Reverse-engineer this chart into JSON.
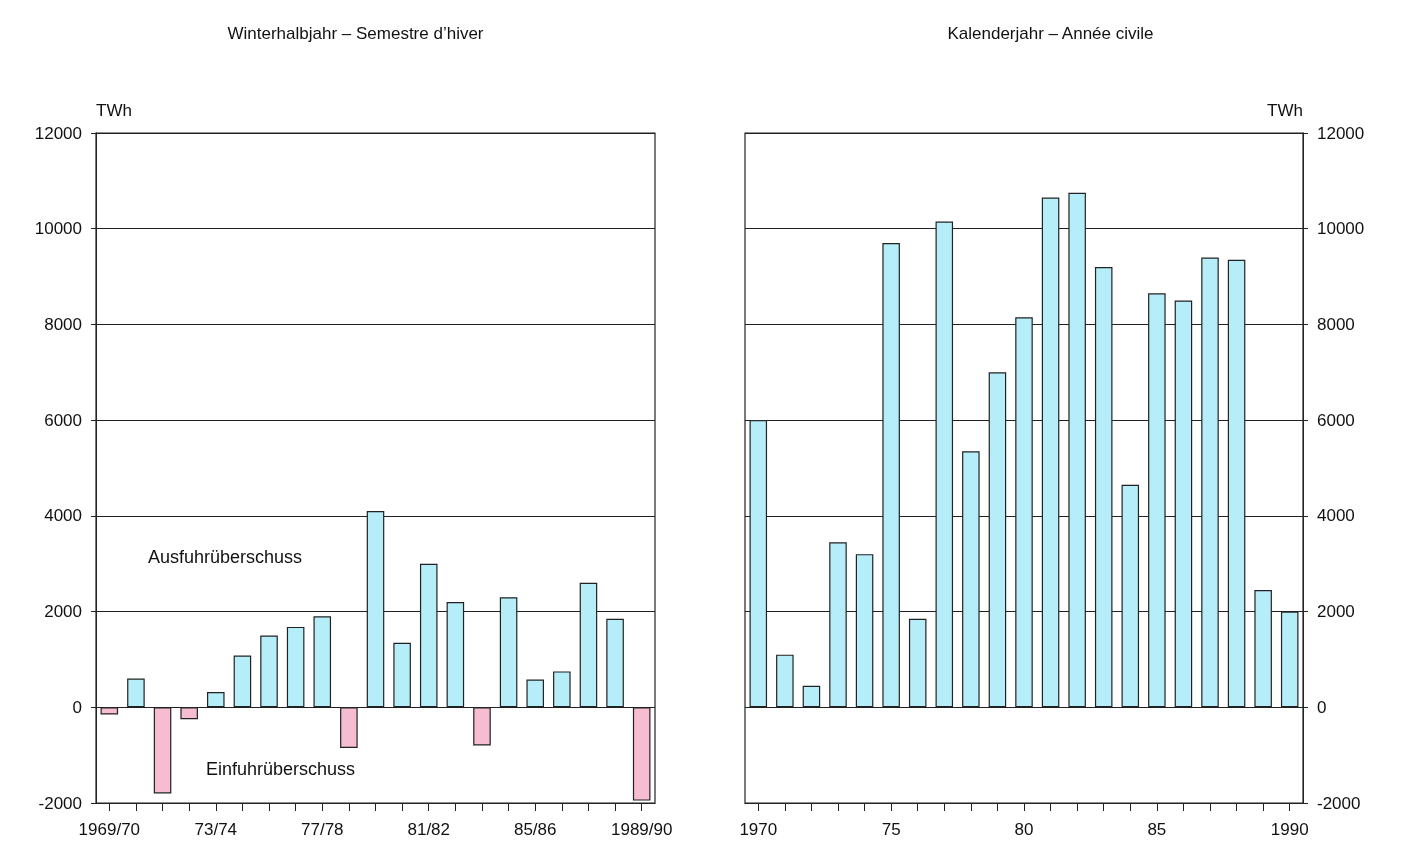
{
  "chart_data": [
    {
      "type": "bar",
      "title": "Winterhalbjahr – Semestre d’hiver",
      "ylabel": "TWh",
      "categories": [
        "1969/70",
        null,
        null,
        null,
        "73/74",
        null,
        null,
        null,
        "77/78",
        null,
        null,
        null,
        "81/82",
        null,
        null,
        null,
        "85/86",
        null,
        null,
        null,
        "1989/90"
      ],
      "values": [
        -150,
        600,
        -1800,
        -250,
        320,
        1080,
        1500,
        1680,
        1900,
        -850,
        4100,
        1350,
        3000,
        2200,
        -800,
        2300,
        580,
        750,
        2600,
        1850,
        -1950
      ],
      "colors": [
        "#f5bcd2",
        "#b5eef9",
        "#f5bcd2",
        "#f5bcd2",
        "#b5eef9",
        "#b5eef9",
        "#b5eef9",
        "#b5eef9",
        "#b5eef9",
        "#f5bcd2",
        "#b5eef9",
        "#b5eef9",
        "#b5eef9",
        "#b5eef9",
        "#f5bcd2",
        "#b5eef9",
        "#b5eef9",
        "#b5eef9",
        "#b5eef9",
        "#b5eef9",
        "#f5bcd2"
      ],
      "ylim": [
        -2000,
        12000
      ],
      "yticks": [
        -2000,
        0,
        2000,
        4000,
        6000,
        8000,
        10000,
        12000
      ],
      "grid": "y",
      "annotations": [
        "Ausfuhrüberschuss",
        "Einfuhrüberschuss"
      ]
    },
    {
      "type": "bar",
      "title": "Kalenderjahr – Année civile",
      "y2label": "TWh",
      "categories": [
        "1970",
        null,
        null,
        null,
        null,
        "75",
        null,
        null,
        null,
        null,
        "80",
        null,
        null,
        null,
        null,
        "85",
        null,
        null,
        null,
        null,
        "1990"
      ],
      "series": [
        {
          "color": "#b5eef9",
          "axis": "y2",
          "values": [
            6000,
            1100,
            450,
            3450,
            3200,
            9700,
            1850,
            10150,
            5350,
            7000,
            8150,
            10650,
            10750,
            9200,
            4650,
            8650,
            8500,
            9400,
            9350,
            2450,
            2000
          ]
        }
      ],
      "y2lim": [
        -2000,
        12000
      ],
      "y2ticks": [
        -2000,
        0,
        2000,
        4000,
        6000,
        8000,
        10000,
        12000
      ],
      "grid": "y"
    }
  ]
}
